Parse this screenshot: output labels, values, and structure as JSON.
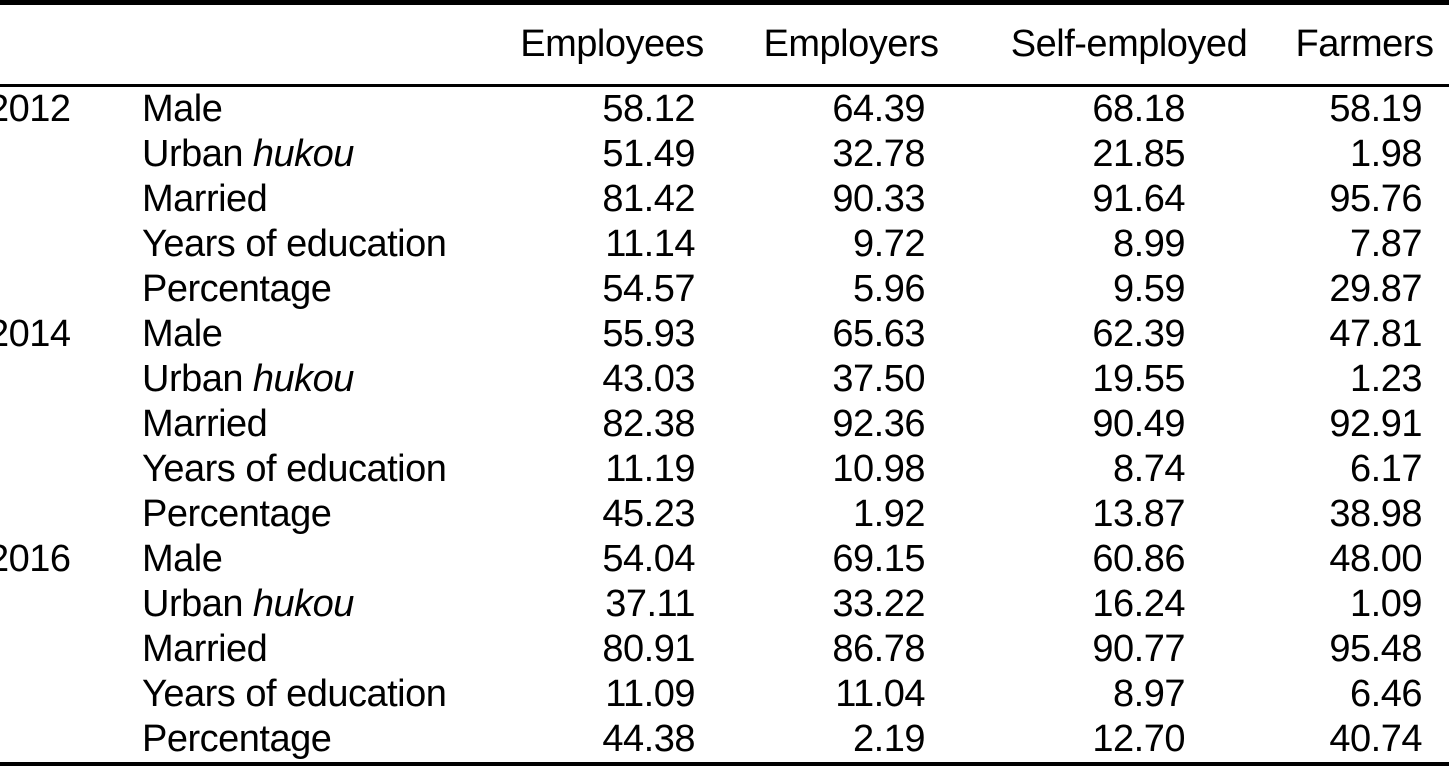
{
  "table": {
    "colors": {
      "text": "#000000",
      "background": "#ffffff",
      "rule": "#000000"
    },
    "headers": {
      "year": "",
      "label": "",
      "employees": "Employees",
      "employers": "Employers",
      "self_employed": "Self-employed",
      "farmers": "Farmers"
    },
    "rows": [
      {
        "year": "2012",
        "label": "Male",
        "label_italic": "",
        "values": [
          "58.12",
          "64.39",
          "68.18",
          "58.19"
        ]
      },
      {
        "year": "",
        "label": "Urban",
        "label_italic": "hukou",
        "values": [
          "51.49",
          "32.78",
          "21.85",
          "1.98"
        ]
      },
      {
        "year": "",
        "label": "Married",
        "label_italic": "",
        "values": [
          "81.42",
          "90.33",
          "91.64",
          "95.76"
        ]
      },
      {
        "year": "",
        "label": "Years of education",
        "label_italic": "",
        "values": [
          "11.14",
          "9.72",
          "8.99",
          "7.87"
        ]
      },
      {
        "year": "",
        "label": "Percentage",
        "label_italic": "",
        "values": [
          "54.57",
          "5.96",
          "9.59",
          "29.87"
        ]
      },
      {
        "year": "2014",
        "label": "Male",
        "label_italic": "",
        "values": [
          "55.93",
          "65.63",
          "62.39",
          "47.81"
        ]
      },
      {
        "year": "",
        "label": "Urban",
        "label_italic": "hukou",
        "values": [
          "43.03",
          "37.50",
          "19.55",
          "1.23"
        ]
      },
      {
        "year": "",
        "label": "Married",
        "label_italic": "",
        "values": [
          "82.38",
          "92.36",
          "90.49",
          "92.91"
        ]
      },
      {
        "year": "",
        "label": "Years of education",
        "label_italic": "",
        "values": [
          "11.19",
          "10.98",
          "8.74",
          "6.17"
        ]
      },
      {
        "year": "",
        "label": "Percentage",
        "label_italic": "",
        "values": [
          "45.23",
          "1.92",
          "13.87",
          "38.98"
        ]
      },
      {
        "year": "2016",
        "label": "Male",
        "label_italic": "",
        "values": [
          "54.04",
          "69.15",
          "60.86",
          "48.00"
        ]
      },
      {
        "year": "",
        "label": "Urban",
        "label_italic": "hukou",
        "values": [
          "37.11",
          "33.22",
          "16.24",
          "1.09"
        ]
      },
      {
        "year": "",
        "label": "Married",
        "label_italic": "",
        "values": [
          "80.91",
          "86.78",
          "90.77",
          "95.48"
        ]
      },
      {
        "year": "",
        "label": "Years of education",
        "label_italic": "",
        "values": [
          "11.09",
          "11.04",
          "8.97",
          "6.46"
        ]
      },
      {
        "year": "",
        "label": "Percentage",
        "label_italic": "",
        "values": [
          "44.38",
          "2.19",
          "12.70",
          "40.74"
        ]
      }
    ]
  }
}
